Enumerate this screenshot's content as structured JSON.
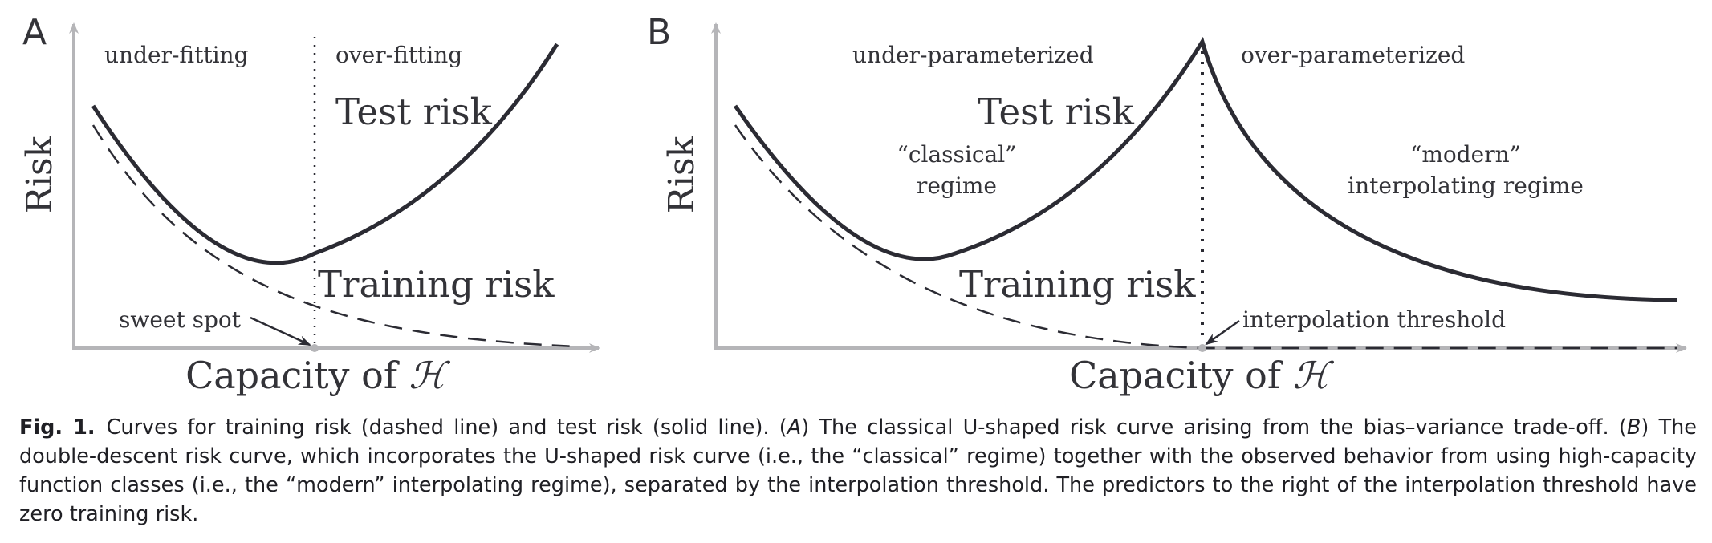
{
  "panel_a": {
    "letter": "A",
    "y_label": "Risk",
    "x_label_prefix": "Capacity of ",
    "x_label_symbol": "ℋ",
    "region_left": "under-fitting",
    "region_right": "over-fitting",
    "test_label": "Test risk",
    "train_label": "Training risk",
    "annotation": "sweet spot"
  },
  "panel_b": {
    "letter": "B",
    "y_label": "Risk",
    "x_label_prefix": "Capacity of ",
    "x_label_symbol": "ℋ",
    "region_left": "under-parameterized",
    "region_right": "over-parameterized",
    "test_label": "Test risk",
    "train_label": "Training risk",
    "classical_line1": "“classical”",
    "classical_line2": "regime",
    "modern_line1": "“modern”",
    "modern_line2": "interpolating regime",
    "annotation": "interpolation threshold"
  },
  "caption": {
    "label": "Fig. 1.",
    "part1": "Curves for training risk (dashed line) and test risk (solid line). (",
    "ref_a": "A",
    "part2": ") The classical U-shaped risk curve arising from the bias–variance trade-off. (",
    "ref_b": "B",
    "part3": ") The double-descent risk curve, which incorporates the U-shaped risk curve (i.e., the “classical” regime) together with the observed behavior from using high-capacity function classes (i.e., the “modern” interpolating regime), separated by the interpolation threshold. The predictors to the right of the interpolation threshold have zero training risk."
  },
  "colors": {
    "curve": "#2b2b33",
    "axis": "#b5b5b8",
    "text": "#333338"
  }
}
